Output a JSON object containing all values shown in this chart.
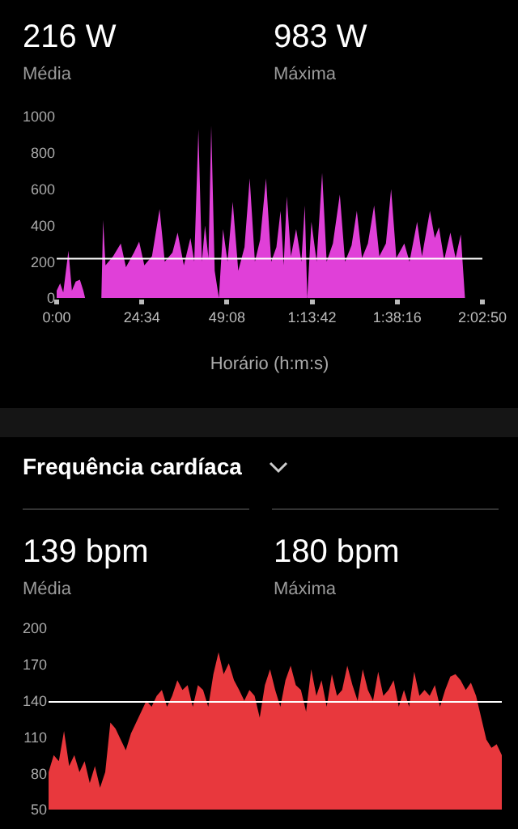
{
  "chart_data": [
    {
      "type": "area",
      "annotations": [
        "216 W",
        "Média",
        "983 W",
        "Máxima"
      ],
      "xlabel": "Horário (h:m:s)",
      "color": "#e040d8",
      "x": [
        0,
        1,
        1.9,
        3.4,
        4.4,
        5.5,
        6.7,
        7.7,
        8.2,
        9.6,
        12.9,
        13.4,
        14.1,
        16.3,
        18.5,
        20,
        22.3,
        23.8,
        25.3,
        27.5,
        29.7,
        31.2,
        33.4,
        34.9,
        36.7,
        38.6,
        39.7,
        40.9,
        41.9,
        42.8,
        43.8,
        44.6,
        45.6,
        46.8,
        48,
        49.3,
        50.8,
        52.4,
        54.2,
        55.7,
        57.2,
        58.7,
        60.4,
        61.9,
        63.4,
        64.6,
        65.5,
        66.4,
        67.6,
        69.1,
        70.6,
        71.6,
        72.3,
        73.5,
        75,
        76.6,
        77.9,
        79.7,
        81.7,
        83.2,
        85.1,
        86.6,
        88.1,
        89.8,
        91.6,
        93.1,
        95,
        96.5,
        98,
        100.3,
        101.8,
        104,
        105.4,
        107.7,
        109.1,
        110.3,
        111.8,
        113.6,
        115.1,
        116.6,
        117.8
      ],
      "values": [
        40,
        80,
        30,
        260,
        40,
        90,
        100,
        40,
        0,
        null,
        0,
        430,
        180,
        230,
        300,
        170,
        250,
        310,
        180,
        230,
        490,
        200,
        250,
        360,
        180,
        330,
        200,
        930,
        200,
        400,
        220,
        950,
        150,
        0,
        380,
        200,
        530,
        150,
        280,
        660,
        200,
        320,
        660,
        200,
        280,
        480,
        180,
        560,
        230,
        380,
        200,
        510,
        0,
        420,
        200,
        690,
        200,
        300,
        570,
        200,
        290,
        480,
        220,
        300,
        510,
        230,
        300,
        600,
        220,
        300,
        200,
        420,
        230,
        480,
        330,
        390,
        210,
        360,
        220,
        350,
        0
      ],
      "xlim": [
        0,
        122.83
      ],
      "xticks": [
        {
          "value": 0,
          "label": "0:00"
        },
        {
          "value": 24.57,
          "label": "24:34"
        },
        {
          "value": 49.13,
          "label": "49:08"
        },
        {
          "value": 73.7,
          "label": "1:13:42"
        },
        {
          "value": 98.27,
          "label": "1:38:16"
        },
        {
          "value": 122.83,
          "label": "2:02:50"
        }
      ],
      "ylim": [
        0,
        1000
      ],
      "yticks": [
        0,
        200,
        400,
        600,
        800,
        1000
      ],
      "grid": false,
      "ref_lines": [
        {
          "axis": "y",
          "value": 216,
          "color": "#ffffff"
        }
      ]
    },
    {
      "type": "area",
      "title": "Frequência cardíaca",
      "annotations": [
        "139 bpm",
        "Média",
        "180 bpm",
        "Máxima"
      ],
      "color": "#e8383d",
      "categories": [
        null,
        null,
        null,
        null,
        null,
        null,
        null,
        null,
        null,
        null,
        null,
        null,
        null,
        null,
        null,
        null,
        null,
        null,
        null,
        null,
        null,
        null,
        null,
        null,
        null,
        null,
        null,
        null,
        null,
        null,
        null,
        null,
        null,
        null,
        null,
        null,
        null,
        null,
        null,
        null,
        null,
        null,
        null,
        null,
        null,
        null,
        null,
        null,
        null,
        null,
        null,
        null,
        null,
        null,
        null,
        null,
        null,
        null,
        null,
        null,
        null,
        null,
        null,
        null,
        null,
        null,
        null,
        null,
        null,
        null,
        null,
        null,
        null,
        null,
        null,
        null,
        null,
        null,
        null,
        null,
        null,
        null,
        null,
        null,
        null,
        null,
        null,
        null,
        null
      ],
      "values": [
        81,
        95,
        90,
        115,
        86,
        95,
        81,
        90,
        72,
        86,
        68,
        81,
        122,
        117,
        108,
        99,
        113,
        122,
        131,
        140,
        135,
        144,
        149,
        135,
        144,
        157,
        149,
        153,
        135,
        153,
        149,
        135,
        162,
        180,
        162,
        171,
        157,
        149,
        140,
        149,
        144,
        126,
        153,
        166,
        149,
        135,
        157,
        169,
        153,
        149,
        131,
        166,
        144,
        157,
        135,
        162,
        144,
        149,
        169,
        153,
        140,
        166,
        149,
        140,
        164,
        144,
        149,
        157,
        135,
        149,
        135,
        164,
        144,
        149,
        144,
        153,
        135,
        149,
        160,
        162,
        157,
        149,
        155,
        144,
        126,
        108,
        101,
        104,
        95
      ],
      "ylim": [
        50,
        200
      ],
      "yticks": [
        50,
        80,
        110,
        140,
        170,
        200
      ],
      "grid": false,
      "tick_labels": "y",
      "ref_lines": [
        {
          "axis": "y",
          "value": 139,
          "color": "#ffffff"
        }
      ]
    }
  ]
}
